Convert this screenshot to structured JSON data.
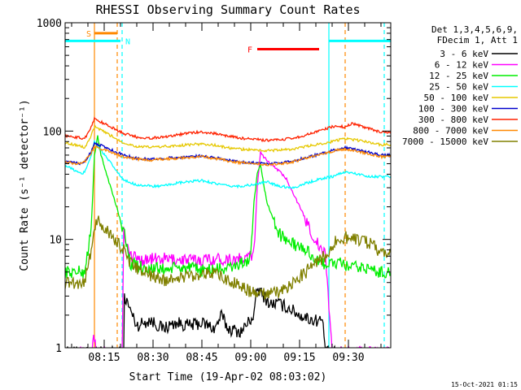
{
  "chart_data": {
    "type": "line",
    "title": "RHESSI Observing Summary Count Rates",
    "xlabel": "Start Time (19-Apr-02 08:03:02)",
    "ylabel": "Count Rate (s⁻¹ detector⁻¹)",
    "yscale": "log",
    "ylim": [
      1,
      1000
    ],
    "xlim_minutes": [
      0,
      100
    ],
    "x_tick_labels": [
      {
        "t": 12,
        "label": "08:15"
      },
      {
        "t": 27,
        "label": "08:30"
      },
      {
        "t": 42,
        "label": "08:45"
      },
      {
        "t": 57,
        "label": "09:00"
      },
      {
        "t": 72,
        "label": "09:15"
      },
      {
        "t": 87,
        "label": "09:30"
      }
    ],
    "y_tick_labels": [
      {
        "v": 1,
        "label": "1"
      },
      {
        "v": 10,
        "label": "10"
      },
      {
        "v": 100,
        "label": "100"
      },
      {
        "v": 1000,
        "label": "1000"
      }
    ],
    "legend_header": [
      "Det 1,3,4,5,6,9,",
      "FDecim 1, Att 1"
    ],
    "legend_position": "top-right outside",
    "footer_timestamp": "15-Oct-2021 01:15",
    "series": [
      {
        "name": "3 - 6 keV",
        "color": "#000000",
        "points": [
          [
            0,
            0.9
          ],
          [
            11,
            0.9
          ],
          [
            18,
            0.9
          ],
          [
            18.2,
            3
          ],
          [
            22,
            1.6
          ],
          [
            26,
            1.8
          ],
          [
            30,
            1.5
          ],
          [
            34,
            1.7
          ],
          [
            38,
            1.6
          ],
          [
            42,
            1.7
          ],
          [
            46,
            1.5
          ],
          [
            48,
            2
          ],
          [
            50,
            1.5
          ],
          [
            54,
            1.4
          ],
          [
            58,
            2
          ],
          [
            59,
            3.5
          ],
          [
            61,
            3
          ],
          [
            63,
            2.5
          ],
          [
            65,
            2.6
          ],
          [
            69,
            2.3
          ],
          [
            72,
            2
          ],
          [
            76,
            1.8
          ],
          [
            79,
            1.8
          ],
          [
            80,
            0.9
          ],
          [
            100,
            0.9
          ]
        ]
      },
      {
        "name": "6 - 12 keV",
        "color": "#ff00ff",
        "points": [
          [
            0,
            0.9
          ],
          [
            8,
            0.9
          ],
          [
            9,
            1.3
          ],
          [
            9.5,
            0.9
          ],
          [
            17.5,
            0.9
          ],
          [
            18,
            12
          ],
          [
            20,
            7
          ],
          [
            24,
            6.5
          ],
          [
            30,
            6.6
          ],
          [
            36,
            6.5
          ],
          [
            40,
            6.4
          ],
          [
            44,
            6.6
          ],
          [
            50,
            6.6
          ],
          [
            55,
            6.5
          ],
          [
            58,
            7.5
          ],
          [
            59,
            30
          ],
          [
            60,
            65
          ],
          [
            61,
            58
          ],
          [
            63,
            50
          ],
          [
            65,
            45
          ],
          [
            68,
            36
          ],
          [
            70,
            27
          ],
          [
            72,
            20
          ],
          [
            74,
            15
          ],
          [
            76,
            11
          ],
          [
            78,
            8.5
          ],
          [
            80,
            7
          ],
          [
            82,
            0.9
          ],
          [
            100,
            0.9
          ]
        ]
      },
      {
        "name": "12 - 25 keV",
        "color": "#00ee00",
        "points": [
          [
            0,
            5
          ],
          [
            6,
            5
          ],
          [
            7,
            8
          ],
          [
            8,
            12
          ],
          [
            9,
            60
          ],
          [
            10,
            90
          ],
          [
            11,
            60
          ],
          [
            18,
            12
          ],
          [
            20,
            6
          ],
          [
            24,
            5.5
          ],
          [
            30,
            5.3
          ],
          [
            36,
            5.5
          ],
          [
            42,
            5.2
          ],
          [
            50,
            5.4
          ],
          [
            57,
            6.5
          ],
          [
            58,
            22
          ],
          [
            59,
            40
          ],
          [
            60,
            48
          ],
          [
            61,
            32
          ],
          [
            62,
            22
          ],
          [
            64,
            15
          ],
          [
            66,
            11
          ],
          [
            70,
            9
          ],
          [
            74,
            8
          ],
          [
            76,
            7
          ],
          [
            78,
            6
          ],
          [
            80,
            6
          ],
          [
            84,
            6
          ],
          [
            88,
            5.5
          ],
          [
            92,
            5.5
          ],
          [
            96,
            5
          ],
          [
            100,
            5
          ]
        ]
      },
      {
        "name": "25 - 50 keV",
        "color": "#00ffff",
        "points": [
          [
            0,
            48
          ],
          [
            2,
            45
          ],
          [
            5,
            40
          ],
          [
            6,
            42
          ],
          [
            8,
            60
          ],
          [
            9,
            80
          ],
          [
            18,
            35
          ],
          [
            22,
            32
          ],
          [
            26,
            31
          ],
          [
            30,
            31
          ],
          [
            34,
            33
          ],
          [
            38,
            34
          ],
          [
            42,
            35
          ],
          [
            46,
            33
          ],
          [
            50,
            31
          ],
          [
            54,
            31
          ],
          [
            58,
            32
          ],
          [
            62,
            34
          ],
          [
            66,
            31
          ],
          [
            70,
            30
          ],
          [
            74,
            33
          ],
          [
            78,
            36
          ],
          [
            82,
            38
          ],
          [
            86,
            42
          ],
          [
            90,
            40
          ],
          [
            94,
            38
          ],
          [
            97,
            38
          ],
          [
            100,
            38
          ]
        ]
      },
      {
        "name": "50 - 100 keV",
        "color": "#e6c800",
        "points": [
          [
            0,
            78
          ],
          [
            3,
            75
          ],
          [
            5,
            72
          ],
          [
            6,
            70
          ],
          [
            8,
            90
          ],
          [
            9,
            110
          ],
          [
            18,
            78
          ],
          [
            22,
            72
          ],
          [
            26,
            71
          ],
          [
            30,
            72
          ],
          [
            34,
            73
          ],
          [
            38,
            75
          ],
          [
            42,
            76
          ],
          [
            46,
            74
          ],
          [
            50,
            70
          ],
          [
            54,
            68
          ],
          [
            58,
            67
          ],
          [
            62,
            66
          ],
          [
            66,
            67
          ],
          [
            70,
            68
          ],
          [
            74,
            72
          ],
          [
            78,
            76
          ],
          [
            82,
            80
          ],
          [
            84,
            83
          ],
          [
            86,
            85
          ],
          [
            90,
            82
          ],
          [
            94,
            78
          ],
          [
            97,
            75
          ],
          [
            100,
            75
          ]
        ]
      },
      {
        "name": "100 - 300 keV",
        "color": "#0000cc",
        "points": [
          [
            0,
            52
          ],
          [
            3,
            51
          ],
          [
            5,
            50
          ],
          [
            6,
            52
          ],
          [
            8,
            65
          ],
          [
            9,
            78
          ],
          [
            18,
            60
          ],
          [
            22,
            56
          ],
          [
            26,
            55
          ],
          [
            30,
            56
          ],
          [
            34,
            57
          ],
          [
            38,
            58
          ],
          [
            42,
            59
          ],
          [
            46,
            57
          ],
          [
            50,
            54
          ],
          [
            54,
            52
          ],
          [
            58,
            51
          ],
          [
            62,
            50
          ],
          [
            66,
            51
          ],
          [
            70,
            53
          ],
          [
            74,
            57
          ],
          [
            78,
            61
          ],
          [
            82,
            66
          ],
          [
            84,
            68
          ],
          [
            86,
            70
          ],
          [
            90,
            67
          ],
          [
            94,
            63
          ],
          [
            97,
            60
          ],
          [
            100,
            60
          ]
        ]
      },
      {
        "name": "300 - 800 keV",
        "color": "#ff2200",
        "points": [
          [
            0,
            90
          ],
          [
            3,
            88
          ],
          [
            5,
            86
          ],
          [
            6,
            85
          ],
          [
            8,
            110
          ],
          [
            9,
            130
          ],
          [
            18,
            95
          ],
          [
            22,
            88
          ],
          [
            26,
            86
          ],
          [
            30,
            88
          ],
          [
            34,
            92
          ],
          [
            38,
            96
          ],
          [
            42,
            98
          ],
          [
            46,
            95
          ],
          [
            50,
            90
          ],
          [
            54,
            86
          ],
          [
            58,
            84
          ],
          [
            62,
            82
          ],
          [
            66,
            83
          ],
          [
            70,
            86
          ],
          [
            74,
            92
          ],
          [
            78,
            100
          ],
          [
            82,
            110
          ],
          [
            84,
            112
          ],
          [
            86,
            108
          ],
          [
            88,
            118
          ],
          [
            90,
            113
          ],
          [
            94,
            104
          ],
          [
            97,
            98
          ],
          [
            100,
            95
          ]
        ]
      },
      {
        "name": "800 - 7000 keV",
        "color": "#ff8800",
        "points": [
          [
            0,
            52
          ],
          [
            3,
            50
          ],
          [
            5,
            50
          ],
          [
            6,
            52
          ],
          [
            8,
            63
          ],
          [
            9,
            72
          ],
          [
            18,
            58
          ],
          [
            22,
            55
          ],
          [
            26,
            54
          ],
          [
            30,
            55
          ],
          [
            34,
            56
          ],
          [
            38,
            57
          ],
          [
            42,
            58
          ],
          [
            46,
            56
          ],
          [
            50,
            53
          ],
          [
            54,
            51
          ],
          [
            58,
            50
          ],
          [
            62,
            49
          ],
          [
            66,
            50
          ],
          [
            70,
            52
          ],
          [
            74,
            56
          ],
          [
            78,
            60
          ],
          [
            82,
            65
          ],
          [
            84,
            67
          ],
          [
            86,
            68
          ],
          [
            90,
            65
          ],
          [
            94,
            61
          ],
          [
            97,
            58
          ],
          [
            100,
            58
          ]
        ]
      },
      {
        "name": "7000 - 15000 keV",
        "color": "#808000",
        "points": [
          [
            0,
            4
          ],
          [
            4,
            4
          ],
          [
            6,
            4
          ],
          [
            7,
            6
          ],
          [
            8,
            8
          ],
          [
            9,
            12
          ],
          [
            10,
            15
          ],
          [
            18,
            8
          ],
          [
            20,
            6
          ],
          [
            24,
            5
          ],
          [
            30,
            4.2
          ],
          [
            36,
            4.5
          ],
          [
            40,
            4.7
          ],
          [
            44,
            5
          ],
          [
            48,
            4.5
          ],
          [
            52,
            4
          ],
          [
            56,
            3.4
          ],
          [
            58,
            3.2
          ],
          [
            62,
            3.1
          ],
          [
            66,
            3.3
          ],
          [
            68,
            3.5
          ],
          [
            70,
            4
          ],
          [
            72,
            4.5
          ],
          [
            74,
            5
          ],
          [
            76,
            6
          ],
          [
            78,
            6.5
          ],
          [
            80,
            7
          ],
          [
            82,
            9
          ],
          [
            84,
            10
          ],
          [
            86,
            10.5
          ],
          [
            90,
            10
          ],
          [
            94,
            9
          ],
          [
            97,
            7.5
          ],
          [
            100,
            7.5
          ]
        ]
      }
    ],
    "annotations": [
      {
        "text": "S",
        "color": "#ff8800",
        "t_start": 9,
        "t_end": 16,
        "value": 800
      },
      {
        "text": "N",
        "color": "#00ffff",
        "t_start": 0,
        "t_end": 17,
        "value": 680
      },
      {
        "text": "N",
        "color": "#00ffff",
        "t_start": 81,
        "t_end": 100,
        "value": 680
      },
      {
        "text": "F",
        "color": "#ff0000",
        "t_start": 59,
        "t_end": 78,
        "value": 570
      }
    ],
    "vertical_lines": [
      {
        "t": 9,
        "color": "#ff8800",
        "style": "solid"
      },
      {
        "t": 16,
        "color": "#ff8800",
        "style": "dashed"
      },
      {
        "t": 17.5,
        "color": "#00ffff",
        "style": "dashed"
      },
      {
        "t": 81,
        "color": "#00ffff",
        "style": "solid"
      },
      {
        "t": 86,
        "color": "#ff8800",
        "style": "dashed"
      },
      {
        "t": 98,
        "color": "#00ffff",
        "style": "dashed"
      }
    ]
  }
}
